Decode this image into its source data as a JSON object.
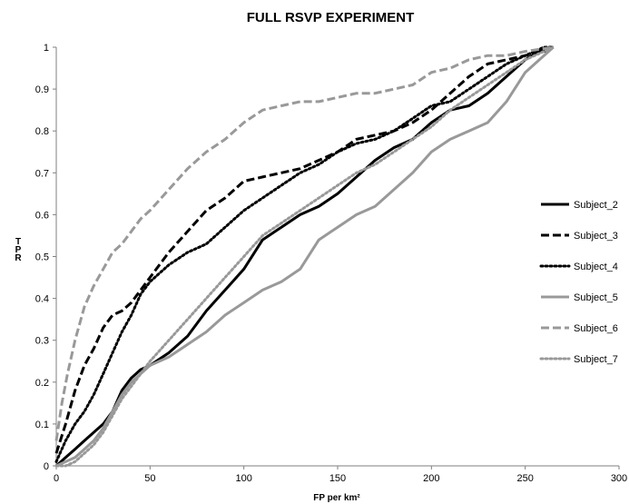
{
  "chart_data": {
    "type": "line",
    "title": "FULL RSVP EXPERIMENT",
    "xlabel": "FP per km²",
    "ylabel": "TPR",
    "xlim": [
      0,
      300
    ],
    "ylim": [
      0,
      1
    ],
    "x_ticks": [
      "0",
      "50",
      "100",
      "150",
      "200",
      "250",
      "300"
    ],
    "y_ticks": [
      "0",
      "0.1",
      "0.2",
      "0.3",
      "0.4",
      "0.5",
      "0.6",
      "0.7",
      "0.8",
      "0.9",
      "1"
    ],
    "grid": false,
    "legend_position": "right",
    "series": [
      {
        "name": "Subject_2",
        "color": "#000000",
        "style": "solid",
        "points": [
          [
            0,
            0
          ],
          [
            5,
            0.02
          ],
          [
            10,
            0.04
          ],
          [
            15,
            0.06
          ],
          [
            20,
            0.08
          ],
          [
            25,
            0.1
          ],
          [
            30,
            0.13
          ],
          [
            35,
            0.18
          ],
          [
            40,
            0.21
          ],
          [
            45,
            0.23
          ],
          [
            50,
            0.24
          ],
          [
            60,
            0.27
          ],
          [
            70,
            0.31
          ],
          [
            80,
            0.37
          ],
          [
            90,
            0.42
          ],
          [
            100,
            0.47
          ],
          [
            110,
            0.54
          ],
          [
            120,
            0.57
          ],
          [
            130,
            0.6
          ],
          [
            140,
            0.62
          ],
          [
            150,
            0.65
          ],
          [
            160,
            0.69
          ],
          [
            170,
            0.73
          ],
          [
            180,
            0.76
          ],
          [
            190,
            0.78
          ],
          [
            200,
            0.82
          ],
          [
            210,
            0.85
          ],
          [
            220,
            0.86
          ],
          [
            230,
            0.89
          ],
          [
            240,
            0.93
          ],
          [
            250,
            0.97
          ],
          [
            257,
            0.99
          ],
          [
            265,
            1
          ]
        ]
      },
      {
        "name": "Subject_3",
        "color": "#000000",
        "style": "dashed",
        "points": [
          [
            0,
            0.03
          ],
          [
            5,
            0.1
          ],
          [
            10,
            0.18
          ],
          [
            15,
            0.24
          ],
          [
            20,
            0.28
          ],
          [
            25,
            0.33
          ],
          [
            30,
            0.36
          ],
          [
            35,
            0.37
          ],
          [
            40,
            0.39
          ],
          [
            45,
            0.42
          ],
          [
            50,
            0.45
          ],
          [
            60,
            0.51
          ],
          [
            70,
            0.56
          ],
          [
            80,
            0.61
          ],
          [
            90,
            0.64
          ],
          [
            100,
            0.68
          ],
          [
            110,
            0.69
          ],
          [
            120,
            0.7
          ],
          [
            130,
            0.71
          ],
          [
            140,
            0.73
          ],
          [
            150,
            0.75
          ],
          [
            160,
            0.78
          ],
          [
            170,
            0.79
          ],
          [
            180,
            0.8
          ],
          [
            190,
            0.82
          ],
          [
            200,
            0.85
          ],
          [
            210,
            0.89
          ],
          [
            220,
            0.93
          ],
          [
            230,
            0.96
          ],
          [
            240,
            0.97
          ],
          [
            250,
            0.98
          ],
          [
            260,
            0.99
          ],
          [
            265,
            1
          ]
        ]
      },
      {
        "name": "Subject_4",
        "color": "#000000",
        "style": "dotted",
        "points": [
          [
            0,
            0.01
          ],
          [
            5,
            0.06
          ],
          [
            10,
            0.1
          ],
          [
            15,
            0.13
          ],
          [
            20,
            0.17
          ],
          [
            25,
            0.22
          ],
          [
            30,
            0.27
          ],
          [
            35,
            0.32
          ],
          [
            40,
            0.36
          ],
          [
            45,
            0.41
          ],
          [
            50,
            0.44
          ],
          [
            60,
            0.48
          ],
          [
            70,
            0.51
          ],
          [
            80,
            0.53
          ],
          [
            90,
            0.57
          ],
          [
            100,
            0.61
          ],
          [
            110,
            0.64
          ],
          [
            120,
            0.67
          ],
          [
            130,
            0.7
          ],
          [
            140,
            0.72
          ],
          [
            150,
            0.75
          ],
          [
            160,
            0.77
          ],
          [
            170,
            0.78
          ],
          [
            180,
            0.8
          ],
          [
            190,
            0.83
          ],
          [
            200,
            0.86
          ],
          [
            210,
            0.87
          ],
          [
            220,
            0.9
          ],
          [
            230,
            0.93
          ],
          [
            240,
            0.96
          ],
          [
            250,
            0.98
          ],
          [
            260,
            1
          ],
          [
            265,
            1
          ]
        ]
      },
      {
        "name": "Subject_5",
        "color": "#999999",
        "style": "solid",
        "points": [
          [
            0,
            0
          ],
          [
            5,
            0.01
          ],
          [
            10,
            0.02
          ],
          [
            15,
            0.04
          ],
          [
            20,
            0.06
          ],
          [
            25,
            0.09
          ],
          [
            30,
            0.13
          ],
          [
            35,
            0.17
          ],
          [
            40,
            0.2
          ],
          [
            45,
            0.22
          ],
          [
            50,
            0.24
          ],
          [
            60,
            0.26
          ],
          [
            70,
            0.29
          ],
          [
            80,
            0.32
          ],
          [
            90,
            0.36
          ],
          [
            100,
            0.39
          ],
          [
            110,
            0.42
          ],
          [
            120,
            0.44
          ],
          [
            130,
            0.47
          ],
          [
            140,
            0.54
          ],
          [
            150,
            0.57
          ],
          [
            160,
            0.6
          ],
          [
            170,
            0.62
          ],
          [
            180,
            0.66
          ],
          [
            190,
            0.7
          ],
          [
            200,
            0.75
          ],
          [
            210,
            0.78
          ],
          [
            220,
            0.8
          ],
          [
            230,
            0.82
          ],
          [
            240,
            0.87
          ],
          [
            250,
            0.94
          ],
          [
            260,
            0.98
          ],
          [
            265,
            1
          ]
        ]
      },
      {
        "name": "Subject_6",
        "color": "#999999",
        "style": "dashed",
        "points": [
          [
            0,
            0.06
          ],
          [
            3,
            0.15
          ],
          [
            6,
            0.22
          ],
          [
            10,
            0.3
          ],
          [
            15,
            0.38
          ],
          [
            20,
            0.43
          ],
          [
            25,
            0.47
          ],
          [
            30,
            0.51
          ],
          [
            35,
            0.53
          ],
          [
            40,
            0.56
          ],
          [
            45,
            0.59
          ],
          [
            50,
            0.61
          ],
          [
            60,
            0.66
          ],
          [
            70,
            0.71
          ],
          [
            80,
            0.75
          ],
          [
            90,
            0.78
          ],
          [
            100,
            0.82
          ],
          [
            110,
            0.85
          ],
          [
            120,
            0.86
          ],
          [
            130,
            0.87
          ],
          [
            140,
            0.87
          ],
          [
            150,
            0.88
          ],
          [
            160,
            0.89
          ],
          [
            170,
            0.89
          ],
          [
            180,
            0.9
          ],
          [
            190,
            0.91
          ],
          [
            200,
            0.94
          ],
          [
            210,
            0.95
          ],
          [
            220,
            0.97
          ],
          [
            230,
            0.98
          ],
          [
            240,
            0.98
          ],
          [
            250,
            0.99
          ],
          [
            265,
            1
          ]
        ]
      },
      {
        "name": "Subject_7",
        "color": "#999999",
        "style": "dotted",
        "points": [
          [
            0,
            0
          ],
          [
            5,
            0
          ],
          [
            10,
            0.01
          ],
          [
            15,
            0.03
          ],
          [
            20,
            0.05
          ],
          [
            25,
            0.08
          ],
          [
            30,
            0.12
          ],
          [
            35,
            0.16
          ],
          [
            40,
            0.19
          ],
          [
            45,
            0.22
          ],
          [
            50,
            0.25
          ],
          [
            60,
            0.3
          ],
          [
            70,
            0.35
          ],
          [
            80,
            0.4
          ],
          [
            90,
            0.45
          ],
          [
            100,
            0.5
          ],
          [
            110,
            0.55
          ],
          [
            120,
            0.58
          ],
          [
            130,
            0.61
          ],
          [
            140,
            0.64
          ],
          [
            150,
            0.67
          ],
          [
            160,
            0.7
          ],
          [
            170,
            0.72
          ],
          [
            180,
            0.75
          ],
          [
            190,
            0.78
          ],
          [
            200,
            0.81
          ],
          [
            210,
            0.85
          ],
          [
            220,
            0.88
          ],
          [
            230,
            0.91
          ],
          [
            240,
            0.94
          ],
          [
            250,
            0.97
          ],
          [
            260,
            0.99
          ],
          [
            265,
            1
          ]
        ]
      }
    ]
  }
}
